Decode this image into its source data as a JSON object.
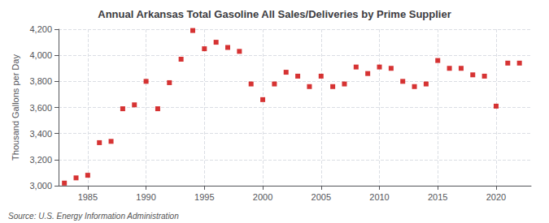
{
  "chart_data": {
    "type": "scatter",
    "title": "Annual Arkansas Total Gasoline All Sales/Deliveries by Prime Supplier",
    "ylabel": "Thousand Gallons per Day",
    "source": "Source: U.S. Energy Information Administration",
    "color": "#cc0000",
    "marker": "square",
    "grid": true,
    "xlim": [
      1982.5,
      2023
    ],
    "ylim": [
      3000,
      4200
    ],
    "xticks": [
      1985,
      1990,
      1995,
      2000,
      2005,
      2010,
      2015,
      2020
    ],
    "yticks": [
      {
        "value": 3000,
        "label": "3,000"
      },
      {
        "value": 3200,
        "label": "3,200"
      },
      {
        "value": 3400,
        "label": "3,400"
      },
      {
        "value": 3600,
        "label": "3,600"
      },
      {
        "value": 3800,
        "label": "3,800"
      },
      {
        "value": 4000,
        "label": "4,000"
      },
      {
        "value": 4200,
        "label": "4,200"
      }
    ],
    "x": [
      1983,
      1984,
      1985,
      1986,
      1987,
      1988,
      1989,
      1990,
      1991,
      1992,
      1993,
      1994,
      1995,
      1996,
      1997,
      1998,
      1999,
      2000,
      2001,
      2002,
      2003,
      2004,
      2005,
      2006,
      2007,
      2008,
      2009,
      2010,
      2011,
      2012,
      2013,
      2014,
      2015,
      2016,
      2017,
      2018,
      2019,
      2020,
      2021,
      2022
    ],
    "values": [
      3020,
      3060,
      3080,
      3330,
      3340,
      3590,
      3620,
      3800,
      3590,
      3790,
      3970,
      4190,
      4050,
      4100,
      4060,
      4030,
      3780,
      3660,
      3780,
      3870,
      3840,
      3760,
      3840,
      3760,
      3780,
      3910,
      3860,
      3910,
      3900,
      3800,
      3760,
      3780,
      3960,
      3900,
      3900,
      3850,
      3840,
      3610,
      3940,
      3940
    ]
  }
}
